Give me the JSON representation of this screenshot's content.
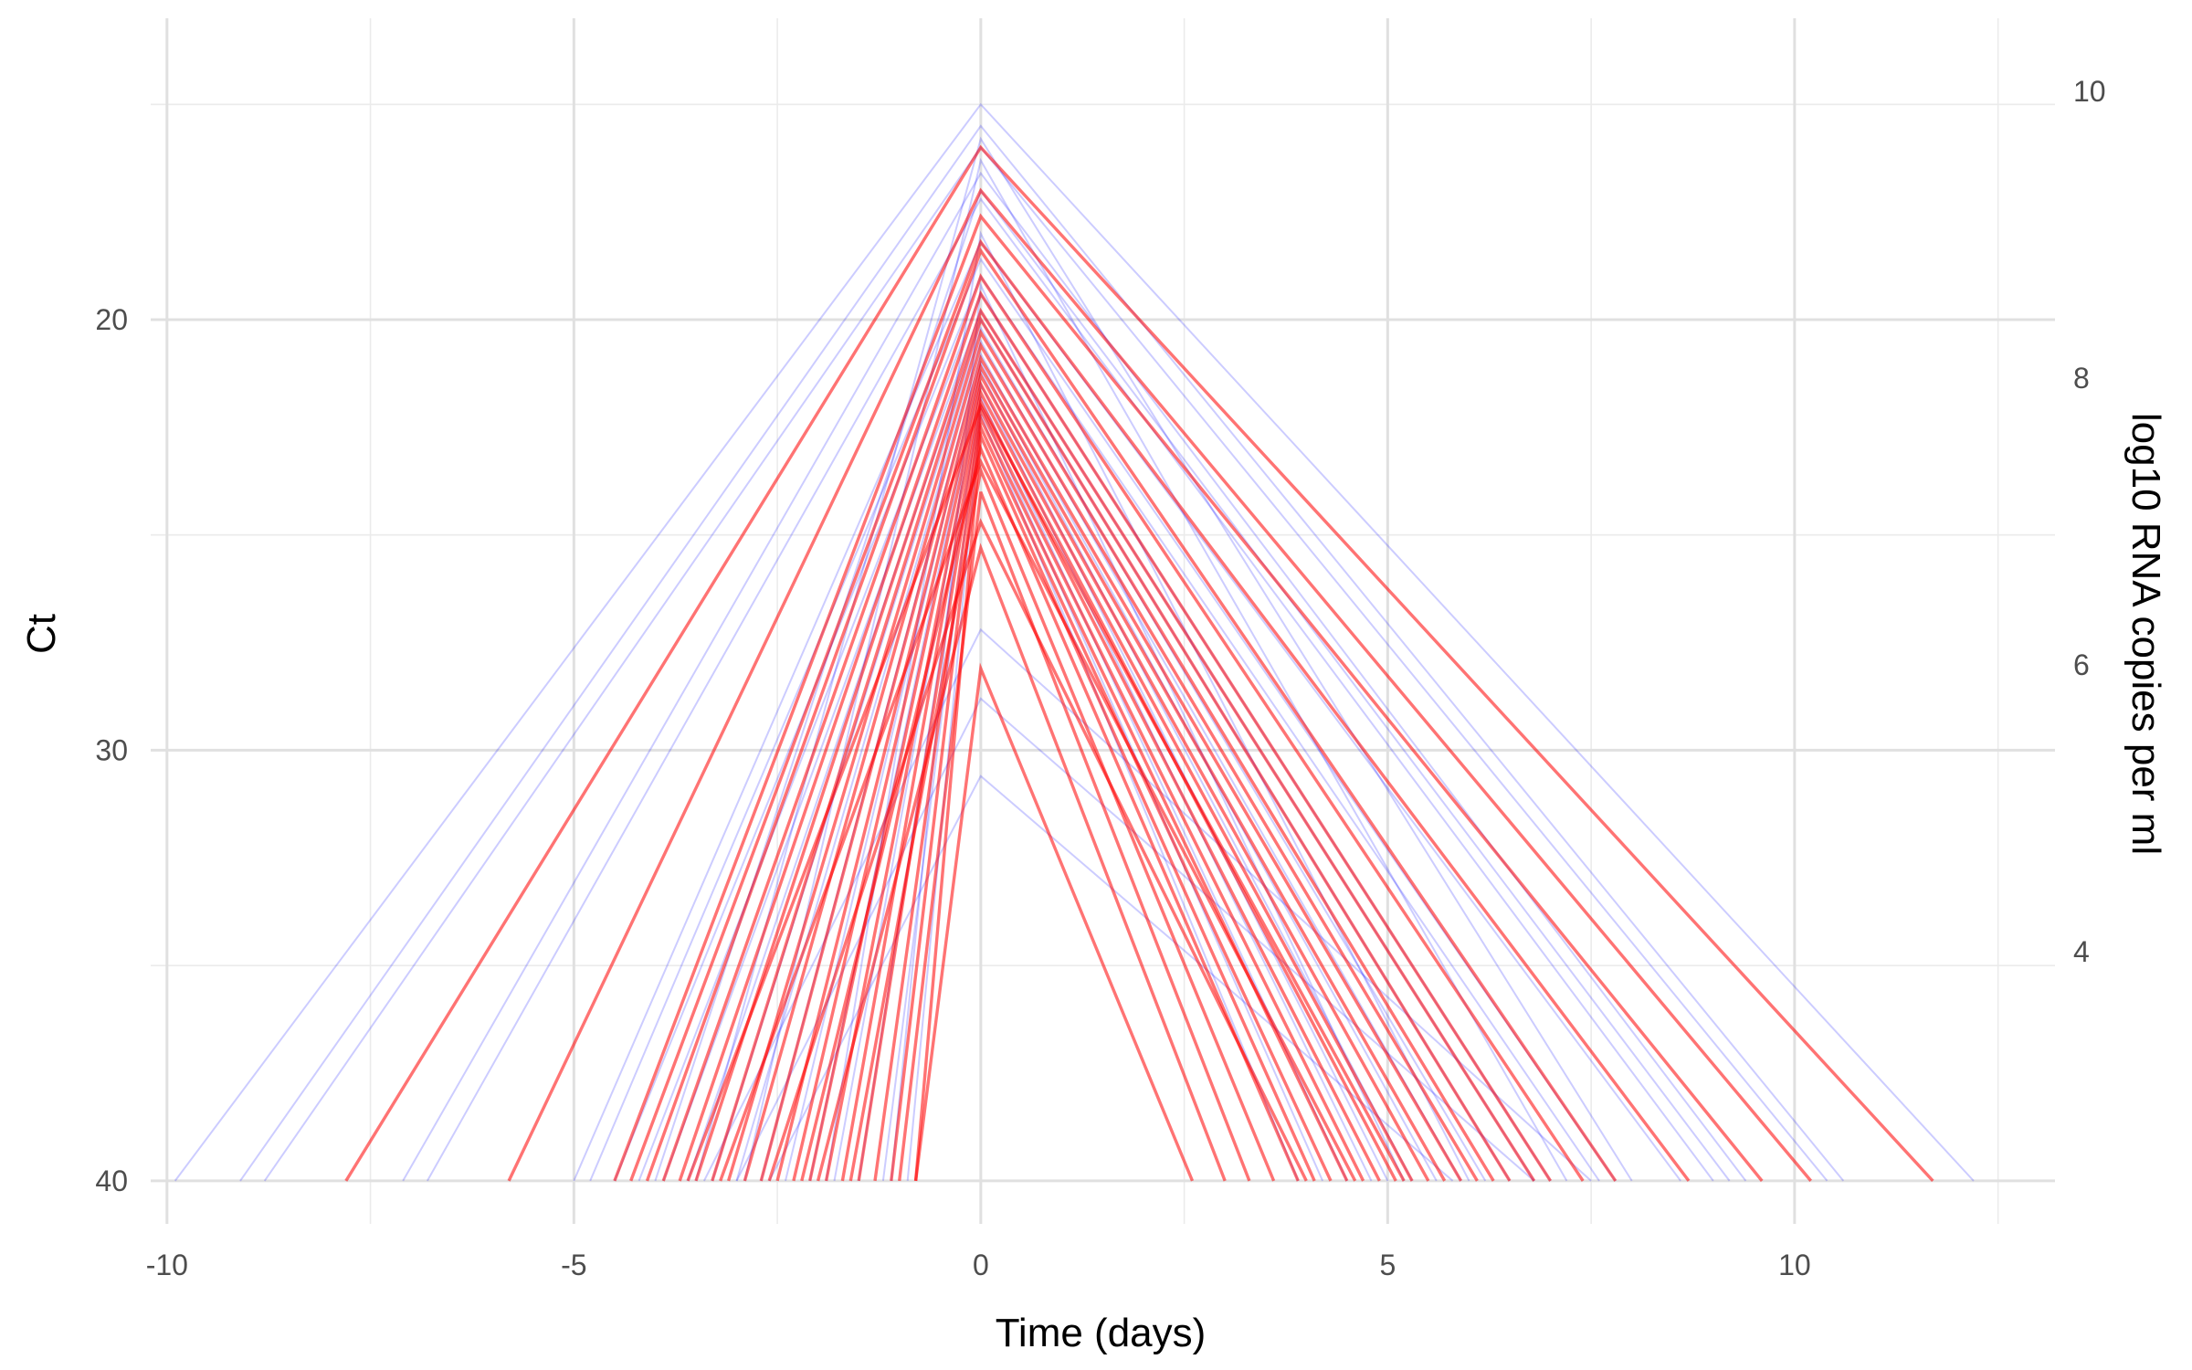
{
  "chart_data": {
    "type": "line",
    "xlabel": "Time (days)",
    "ylabel": "Ct",
    "y2label": "log10 RNA copies per ml",
    "xlim": [
      -10.2,
      13.2
    ],
    "ylim_ct": [
      41,
      13
    ],
    "y_reversed": true,
    "x_ticks": [
      "-10",
      "-5",
      "0",
      "5",
      "10"
    ],
    "x_tick_values": [
      -10,
      -5,
      0,
      5,
      10
    ],
    "x_minor_ticks": [
      -7.5,
      -2.5,
      2.5,
      7.5,
      12.5
    ],
    "ct_ticks": [
      "20",
      "30",
      "40"
    ],
    "ct_tick_values": [
      20,
      30,
      40
    ],
    "ct_minor_ticks": [
      15,
      25,
      35
    ],
    "log10_ticks": [
      "4",
      "6",
      "8",
      "10"
    ],
    "log10_tick_values": [
      4,
      6,
      8,
      10
    ],
    "ct_per_log10_unit": -3.33,
    "ct_at_log10_10": 14.7,
    "grid": true,
    "series": [
      {
        "color": "#0000ff",
        "opacity": 0.2,
        "trajectories": [
          [
            -9.9,
            40,
            0,
            15.0,
            12.2,
            40
          ],
          [
            -9.1,
            40,
            0,
            15.5,
            10.6,
            40
          ],
          [
            -8.8,
            40,
            0,
            16.0,
            10.4,
            40
          ],
          [
            -7.1,
            40,
            0,
            16.6,
            9.4,
            40
          ],
          [
            -6.8,
            40,
            0,
            17.2,
            9.0,
            40
          ],
          [
            -5.0,
            40,
            0,
            18.2,
            8.6,
            40
          ],
          [
            -4.8,
            40,
            0,
            18.6,
            7.8,
            40
          ],
          [
            -4.5,
            40,
            0,
            19.0,
            7.6,
            40
          ],
          [
            -4.2,
            40,
            0,
            19.4,
            7.0,
            40
          ],
          [
            -3.9,
            40,
            0,
            19.8,
            6.8,
            40
          ],
          [
            -3.6,
            40,
            0,
            20.0,
            6.5,
            40
          ],
          [
            -3.3,
            40,
            0,
            20.2,
            6.2,
            40
          ],
          [
            -3.0,
            40,
            0,
            20.5,
            5.9,
            40
          ],
          [
            -2.7,
            40,
            0,
            20.8,
            5.6,
            40
          ],
          [
            -2.4,
            40,
            0,
            21.0,
            5.3,
            40
          ],
          [
            -2.1,
            40,
            0,
            21.2,
            5.0,
            40
          ],
          [
            -1.8,
            40,
            0,
            21.5,
            4.8,
            40
          ],
          [
            -1.5,
            40,
            0,
            21.8,
            4.5,
            40
          ],
          [
            -1.2,
            40,
            0,
            22.0,
            4.2,
            40
          ],
          [
            -0.9,
            40,
            0,
            22.2,
            3.9,
            40
          ],
          [
            -3.4,
            40,
            0,
            27.2,
            7.5,
            40
          ],
          [
            -3.0,
            40,
            0,
            28.8,
            6.8,
            40
          ],
          [
            -2.6,
            40,
            0,
            30.6,
            5.8,
            40
          ],
          [
            -4.0,
            40,
            0,
            17.0,
            9.2,
            40
          ],
          [
            -3.5,
            40,
            0,
            15.8,
            8.0,
            40
          ],
          [
            -2.9,
            40,
            0,
            16.3,
            7.2,
            40
          ],
          [
            -1.9,
            40,
            0,
            18.0,
            6.0,
            40
          ],
          [
            -1.1,
            40,
            0,
            19.2,
            5.2,
            40
          ]
        ]
      },
      {
        "color": "#ff0000",
        "opacity": 0.55,
        "trajectories": [
          [
            -7.8,
            40,
            0,
            16.0,
            11.7,
            40
          ],
          [
            -5.8,
            40,
            0,
            17.0,
            10.2,
            40
          ],
          [
            -4.5,
            40,
            0,
            17.6,
            9.6,
            40
          ],
          [
            -4.3,
            40,
            0,
            18.2,
            8.7,
            40
          ],
          [
            -4.1,
            40,
            0,
            18.4,
            7.8,
            40
          ],
          [
            -3.9,
            40,
            0,
            19.0,
            7.4,
            40
          ],
          [
            -3.7,
            40,
            0,
            19.4,
            7.0,
            40
          ],
          [
            -3.5,
            40,
            0,
            19.8,
            6.8,
            40
          ],
          [
            -3.3,
            40,
            0,
            20.0,
            6.5,
            40
          ],
          [
            -3.1,
            40,
            0,
            20.3,
            6.3,
            40
          ],
          [
            -2.9,
            40,
            0,
            20.6,
            6.1,
            40
          ],
          [
            -2.7,
            40,
            0,
            20.9,
            5.9,
            40
          ],
          [
            -2.5,
            40,
            0,
            21.1,
            5.7,
            40
          ],
          [
            -2.3,
            40,
            0,
            21.3,
            5.5,
            40
          ],
          [
            -2.1,
            40,
            0,
            21.5,
            5.3,
            40
          ],
          [
            -1.9,
            40,
            0,
            21.7,
            5.1,
            40
          ],
          [
            -1.7,
            40,
            0,
            21.9,
            4.9,
            40
          ],
          [
            -1.5,
            40,
            0,
            22.1,
            4.7,
            40
          ],
          [
            -1.3,
            40,
            0,
            22.3,
            4.5,
            40
          ],
          [
            -1.1,
            40,
            0,
            22.5,
            4.3,
            40
          ],
          [
            -0.8,
            40,
            0,
            22.7,
            4.1,
            40
          ],
          [
            -2.2,
            40,
            0,
            23.0,
            3.9,
            40
          ],
          [
            -1.6,
            40,
            0,
            23.5,
            3.6,
            40
          ],
          [
            -1.0,
            40,
            0,
            24.0,
            3.3,
            40
          ],
          [
            -2.6,
            40,
            0,
            24.7,
            4.0,
            40
          ],
          [
            -2.0,
            40,
            0,
            25.3,
            3.0,
            40
          ],
          [
            -3.2,
            40,
            0,
            23.3,
            4.6,
            40
          ],
          [
            -3.6,
            40,
            0,
            22.0,
            5.2,
            40
          ],
          [
            -0.8,
            40,
            0,
            28.1,
            2.6,
            40
          ]
        ]
      }
    ]
  }
}
